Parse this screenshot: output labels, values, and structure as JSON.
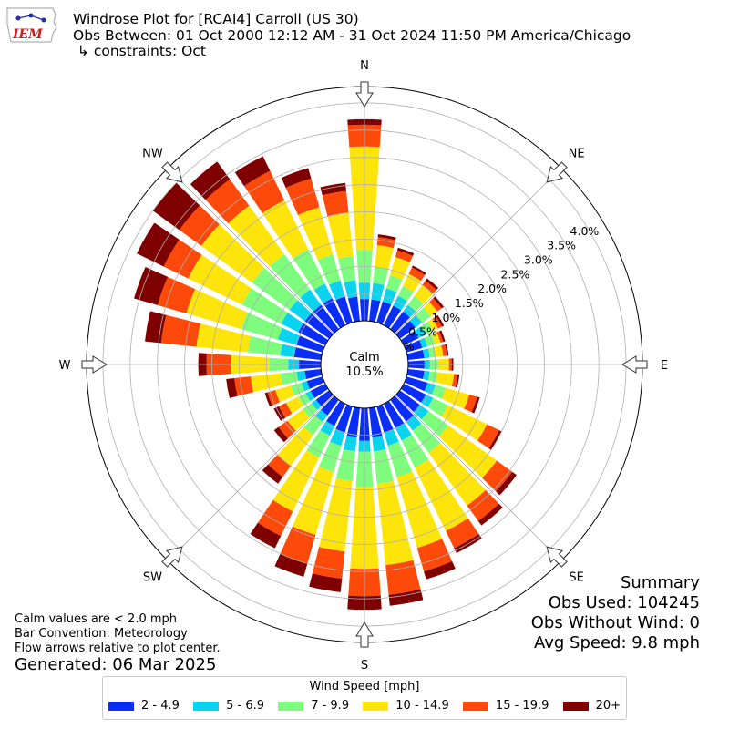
{
  "header": {
    "line1": "Windrose Plot for [RCAI4] Carroll (US 30)",
    "line2": "Obs Between: 01 Oct 2000 12:12 AM - 31 Oct 2024 11:50 PM America/Chicago",
    "line3": " ↳ constraints: Oct"
  },
  "logo": {
    "text": "IEM"
  },
  "notes": {
    "calm_def": "Calm values are < 2.0 mph",
    "convention": "Bar Convention: Meteorology",
    "flow": "Flow arrows relative to plot center.",
    "generated": "Generated: 06 Mar 2025"
  },
  "summary": {
    "title": "Summary",
    "obs_used": "Obs Used: 104245",
    "obs_without_wind": "Obs Without Wind: 0",
    "avg_speed": "Avg Speed: 9.8 mph"
  },
  "legend": {
    "title": "Wind Speed [mph]",
    "items": [
      {
        "label": "2 - 4.9",
        "color": "#0a2ef6"
      },
      {
        "label": "5 - 6.9",
        "color": "#0ad3f0"
      },
      {
        "label": "7 - 9.9",
        "color": "#7dfc7d"
      },
      {
        "label": "10 - 14.9",
        "color": "#fde40a"
      },
      {
        "label": "15 - 19.9",
        "color": "#fd4a0a"
      },
      {
        "label": "20+",
        "color": "#7e0000"
      }
    ]
  },
  "chart_data": {
    "type": "windrose",
    "calm": {
      "label": "Calm",
      "value": "10.5%"
    },
    "radial_ticks": [
      "0.0%",
      "0.5%",
      "1.0%",
      "1.5%",
      "2.0%",
      "2.5%",
      "3.0%",
      "3.5%",
      "4.0%"
    ],
    "radial_tick_values": [
      0,
      0.5,
      1.0,
      1.5,
      2.0,
      2.5,
      3.0,
      3.5,
      4.0
    ],
    "rmax": 4.3,
    "compass": [
      "N",
      "NE",
      "E",
      "SE",
      "S",
      "SW",
      "W",
      "NW"
    ],
    "direction_step_deg": 10,
    "bins": [
      "2 - 4.9",
      "5 - 6.9",
      "7 - 9.9",
      "10 - 14.9",
      "15 - 19.9",
      "20+"
    ],
    "cumulative_percent_by_direction": [
      [
        0.4,
        0.7,
        1.3,
        3.2,
        3.6,
        3.7
      ],
      [
        0.4,
        0.7,
        1.0,
        1.4,
        1.55,
        1.6
      ],
      [
        0.4,
        0.65,
        0.9,
        1.25,
        1.38,
        1.43
      ],
      [
        0.4,
        0.6,
        0.8,
        1.05,
        1.18,
        1.22
      ],
      [
        0.4,
        0.55,
        0.75,
        1.0,
        1.1,
        1.15
      ],
      [
        0.35,
        0.5,
        0.7,
        0.85,
        0.95,
        1.0
      ],
      [
        0.3,
        0.45,
        0.6,
        0.7,
        0.78,
        0.82
      ],
      [
        0.3,
        0.4,
        0.55,
        0.65,
        0.7,
        0.74
      ],
      [
        0.3,
        0.4,
        0.5,
        0.65,
        0.72,
        0.75
      ],
      [
        0.3,
        0.4,
        0.55,
        0.75,
        0.8,
        0.83
      ],
      [
        0.3,
        0.4,
        0.55,
        0.85,
        0.92,
        0.95
      ],
      [
        0.4,
        0.55,
        0.75,
        1.2,
        1.35,
        1.4
      ],
      [
        0.45,
        0.6,
        0.9,
        1.7,
        1.95,
        2.0
      ],
      [
        0.45,
        0.65,
        1.1,
        2.2,
        2.55,
        2.65
      ],
      [
        0.5,
        0.7,
        1.2,
        2.4,
        2.75,
        2.85
      ],
      [
        0.5,
        0.75,
        1.3,
        2.6,
        2.95,
        3.05
      ],
      [
        0.5,
        0.75,
        1.35,
        2.7,
        3.15,
        3.3
      ],
      [
        0.55,
        0.8,
        1.4,
        2.9,
        3.45,
        3.65
      ],
      [
        0.6,
        0.8,
        1.45,
        2.95,
        3.45,
        3.7
      ],
      [
        0.55,
        0.8,
        1.35,
        2.65,
        3.15,
        3.4
      ],
      [
        0.5,
        0.75,
        1.25,
        2.45,
        3.0,
        3.25
      ],
      [
        0.45,
        0.65,
        1.1,
        2.2,
        2.7,
        2.95
      ],
      [
        0.35,
        0.5,
        0.8,
        1.5,
        1.75,
        1.9
      ],
      [
        0.3,
        0.4,
        0.6,
        0.95,
        1.15,
        1.25
      ],
      [
        0.3,
        0.4,
        0.55,
        0.8,
        0.95,
        1.05
      ],
      [
        0.3,
        0.4,
        0.6,
        0.9,
        1.05,
        1.1
      ],
      [
        0.3,
        0.45,
        0.75,
        1.3,
        1.6,
        1.75
      ],
      [
        0.4,
        0.6,
        0.95,
        1.65,
        2.1,
        2.25
      ],
      [
        0.5,
        0.75,
        1.35,
        2.3,
        2.95,
        3.25
      ],
      [
        0.5,
        0.85,
        1.55,
        2.6,
        3.15,
        3.6
      ],
      [
        0.55,
        0.9,
        1.7,
        2.8,
        3.3,
        3.85
      ],
      [
        0.55,
        0.9,
        1.75,
        2.9,
        3.4,
        4.0
      ],
      [
        0.55,
        0.9,
        1.7,
        2.8,
        3.4,
        3.8
      ],
      [
        0.55,
        0.85,
        1.55,
        2.55,
        3.15,
        3.45
      ],
      [
        0.5,
        0.8,
        1.3,
        2.2,
        2.75,
        2.95
      ],
      [
        0.45,
        0.75,
        1.2,
        2.0,
        2.4,
        2.55
      ]
    ]
  }
}
